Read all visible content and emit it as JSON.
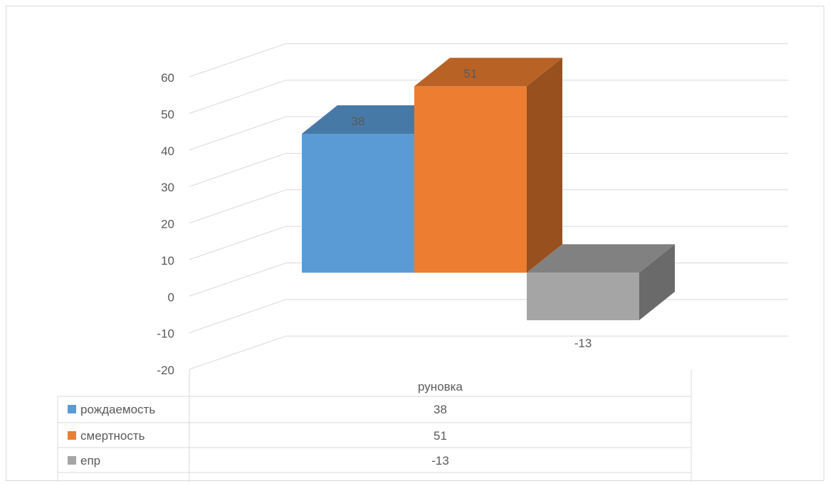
{
  "chart_data": {
    "type": "bar",
    "style": "3d-clustered-column",
    "title": "",
    "xlabel": "",
    "ylabel": "",
    "ylim": [
      -20,
      60
    ],
    "yticks": [
      -20,
      -10,
      0,
      10,
      20,
      30,
      40,
      50,
      60
    ],
    "grid": true,
    "legend": "data-table",
    "categories": [
      "руновка"
    ],
    "series": [
      {
        "name": "рождаемость",
        "values": [
          38
        ],
        "color": "#5b9bd5"
      },
      {
        "name": "смертность",
        "values": [
          51
        ],
        "color": "#ed7d31"
      },
      {
        "name": "епр",
        "values": [
          -13
        ],
        "color": "#a5a5a5"
      }
    ],
    "data_labels": true
  }
}
